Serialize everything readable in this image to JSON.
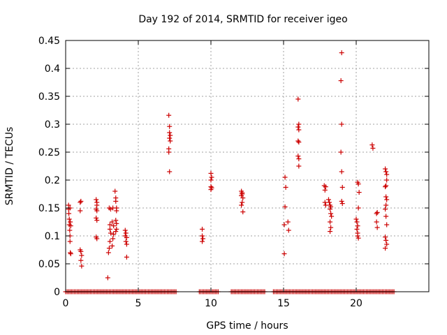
{
  "chart_data": {
    "type": "scatter",
    "title": "Day 192 of 2014, SRMTID for receiver igeo",
    "xlabel": "GPS time / hours",
    "ylabel": "SRMTID / TECUs",
    "xlim": [
      0,
      25
    ],
    "ylim": [
      0,
      0.45
    ],
    "x_ticks": [
      0,
      5,
      10,
      15,
      20
    ],
    "x_tick_labels": [
      "0",
      "5",
      "10",
      "15",
      "20"
    ],
    "y_ticks": [
      0,
      0.05,
      0.1,
      0.15,
      0.2,
      0.25,
      0.3,
      0.35,
      0.4,
      0.45
    ],
    "y_tick_labels": [
      "0",
      "0.05",
      "0.1",
      "0.15",
      "0.2",
      "0.25",
      "0.3",
      "0.35",
      "0.4",
      "0.45"
    ],
    "grid": true,
    "marker": "+",
    "color": "#cc0000",
    "series": [
      {
        "name": "SRMTID",
        "points": [
          [
            0.2,
            0.155
          ],
          [
            0.2,
            0.148
          ],
          [
            0.22,
            0.14
          ],
          [
            0.25,
            0.13
          ],
          [
            0.25,
            0.12
          ],
          [
            0.28,
            0.11
          ],
          [
            0.3,
            0.1
          ],
          [
            0.3,
            0.09
          ],
          [
            0.32,
            0.07
          ],
          [
            0.35,
            0.068
          ],
          [
            0.3,
            0.15
          ],
          [
            0.32,
            0.125
          ],
          [
            0.35,
            0.118
          ],
          [
            1.0,
            0.16
          ],
          [
            1.05,
            0.162
          ],
          [
            1.0,
            0.145
          ],
          [
            1.0,
            0.075
          ],
          [
            1.05,
            0.072
          ],
          [
            1.1,
            0.065
          ],
          [
            1.05,
            0.056
          ],
          [
            1.1,
            0.046
          ],
          [
            2.1,
            0.165
          ],
          [
            2.15,
            0.16
          ],
          [
            2.15,
            0.155
          ],
          [
            2.1,
            0.148
          ],
          [
            2.15,
            0.145
          ],
          [
            2.1,
            0.132
          ],
          [
            2.15,
            0.128
          ],
          [
            2.1,
            0.098
          ],
          [
            2.15,
            0.095
          ],
          [
            2.9,
            0.025
          ],
          [
            3.0,
            0.15
          ],
          [
            3.05,
            0.12
          ],
          [
            3.05,
            0.112
          ],
          [
            3.1,
            0.105
          ],
          [
            3.05,
            0.09
          ],
          [
            3.0,
            0.078
          ],
          [
            2.95,
            0.07
          ],
          [
            3.1,
            0.148
          ],
          [
            3.2,
            0.125
          ],
          [
            3.25,
            0.15
          ],
          [
            3.3,
            0.118
          ],
          [
            3.3,
            0.103
          ],
          [
            3.25,
            0.095
          ],
          [
            3.2,
            0.082
          ],
          [
            3.4,
            0.18
          ],
          [
            3.45,
            0.168
          ],
          [
            3.45,
            0.162
          ],
          [
            3.5,
            0.15
          ],
          [
            3.5,
            0.145
          ],
          [
            3.45,
            0.128
          ],
          [
            3.5,
            0.122
          ],
          [
            3.5,
            0.112
          ],
          [
            3.45,
            0.108
          ],
          [
            4.1,
            0.11
          ],
          [
            4.15,
            0.105
          ],
          [
            4.1,
            0.1
          ],
          [
            4.2,
            0.097
          ],
          [
            4.15,
            0.09
          ],
          [
            4.2,
            0.085
          ],
          [
            4.2,
            0.062
          ],
          [
            7.1,
            0.316
          ],
          [
            7.15,
            0.296
          ],
          [
            7.15,
            0.285
          ],
          [
            7.2,
            0.28
          ],
          [
            7.15,
            0.275
          ],
          [
            7.2,
            0.27
          ],
          [
            7.1,
            0.256
          ],
          [
            7.1,
            0.25
          ],
          [
            7.15,
            0.215
          ],
          [
            9.4,
            0.112
          ],
          [
            9.4,
            0.1
          ],
          [
            9.45,
            0.095
          ],
          [
            9.4,
            0.09
          ],
          [
            10.0,
            0.212
          ],
          [
            10.05,
            0.205
          ],
          [
            10.0,
            0.2
          ],
          [
            10.0,
            0.188
          ],
          [
            10.05,
            0.186
          ],
          [
            10.0,
            0.183
          ],
          [
            12.1,
            0.18
          ],
          [
            12.15,
            0.177
          ],
          [
            12.15,
            0.175
          ],
          [
            12.1,
            0.172
          ],
          [
            12.2,
            0.168
          ],
          [
            12.15,
            0.16
          ],
          [
            12.1,
            0.155
          ],
          [
            12.2,
            0.143
          ],
          [
            15.1,
            0.205
          ],
          [
            15.15,
            0.187
          ],
          [
            15.1,
            0.152
          ],
          [
            15.05,
            0.12
          ],
          [
            15.05,
            0.068
          ],
          [
            15.3,
            0.125
          ],
          [
            15.35,
            0.11
          ],
          [
            16.0,
            0.345
          ],
          [
            16.05,
            0.3
          ],
          [
            16.0,
            0.295
          ],
          [
            16.05,
            0.29
          ],
          [
            16.0,
            0.27
          ],
          [
            16.05,
            0.268
          ],
          [
            16.0,
            0.243
          ],
          [
            16.05,
            0.238
          ],
          [
            16.05,
            0.225
          ],
          [
            17.8,
            0.19
          ],
          [
            17.9,
            0.188
          ],
          [
            17.85,
            0.182
          ],
          [
            17.85,
            0.16
          ],
          [
            17.9,
            0.155
          ],
          [
            18.1,
            0.165
          ],
          [
            18.15,
            0.16
          ],
          [
            18.2,
            0.155
          ],
          [
            18.25,
            0.152
          ],
          [
            18.2,
            0.148
          ],
          [
            18.25,
            0.14
          ],
          [
            18.3,
            0.135
          ],
          [
            18.2,
            0.125
          ],
          [
            18.25,
            0.115
          ],
          [
            18.2,
            0.108
          ],
          [
            19.0,
            0.428
          ],
          [
            18.95,
            0.378
          ],
          [
            19.0,
            0.3
          ],
          [
            18.95,
            0.25
          ],
          [
            19.0,
            0.215
          ],
          [
            19.05,
            0.187
          ],
          [
            19.0,
            0.162
          ],
          [
            19.05,
            0.158
          ],
          [
            20.0,
            0.13
          ],
          [
            20.05,
            0.125
          ],
          [
            20.1,
            0.118
          ],
          [
            20.05,
            0.112
          ],
          [
            20.1,
            0.105
          ],
          [
            20.1,
            0.1
          ],
          [
            20.15,
            0.096
          ],
          [
            20.1,
            0.196
          ],
          [
            20.15,
            0.193
          ],
          [
            20.2,
            0.178
          ],
          [
            20.15,
            0.15
          ],
          [
            21.1,
            0.263
          ],
          [
            21.15,
            0.257
          ],
          [
            21.4,
            0.14
          ],
          [
            21.45,
            0.142
          ],
          [
            21.4,
            0.125
          ],
          [
            21.45,
            0.115
          ],
          [
            22.0,
            0.22
          ],
          [
            22.05,
            0.215
          ],
          [
            22.1,
            0.21
          ],
          [
            22.1,
            0.2
          ],
          [
            22.05,
            0.19
          ],
          [
            22.0,
            0.188
          ],
          [
            22.05,
            0.17
          ],
          [
            22.1,
            0.165
          ],
          [
            22.05,
            0.155
          ],
          [
            22.0,
            0.148
          ],
          [
            22.05,
            0.135
          ],
          [
            22.1,
            0.12
          ],
          [
            22.0,
            0.098
          ],
          [
            22.05,
            0.092
          ],
          [
            22.1,
            0.085
          ],
          [
            22.0,
            0.078
          ]
        ],
        "zero_ranges": [
          [
            0,
            7.6
          ],
          [
            9.2,
            10.5
          ],
          [
            11.4,
            13.7
          ],
          [
            14.3,
            22.6
          ]
        ]
      }
    ]
  }
}
